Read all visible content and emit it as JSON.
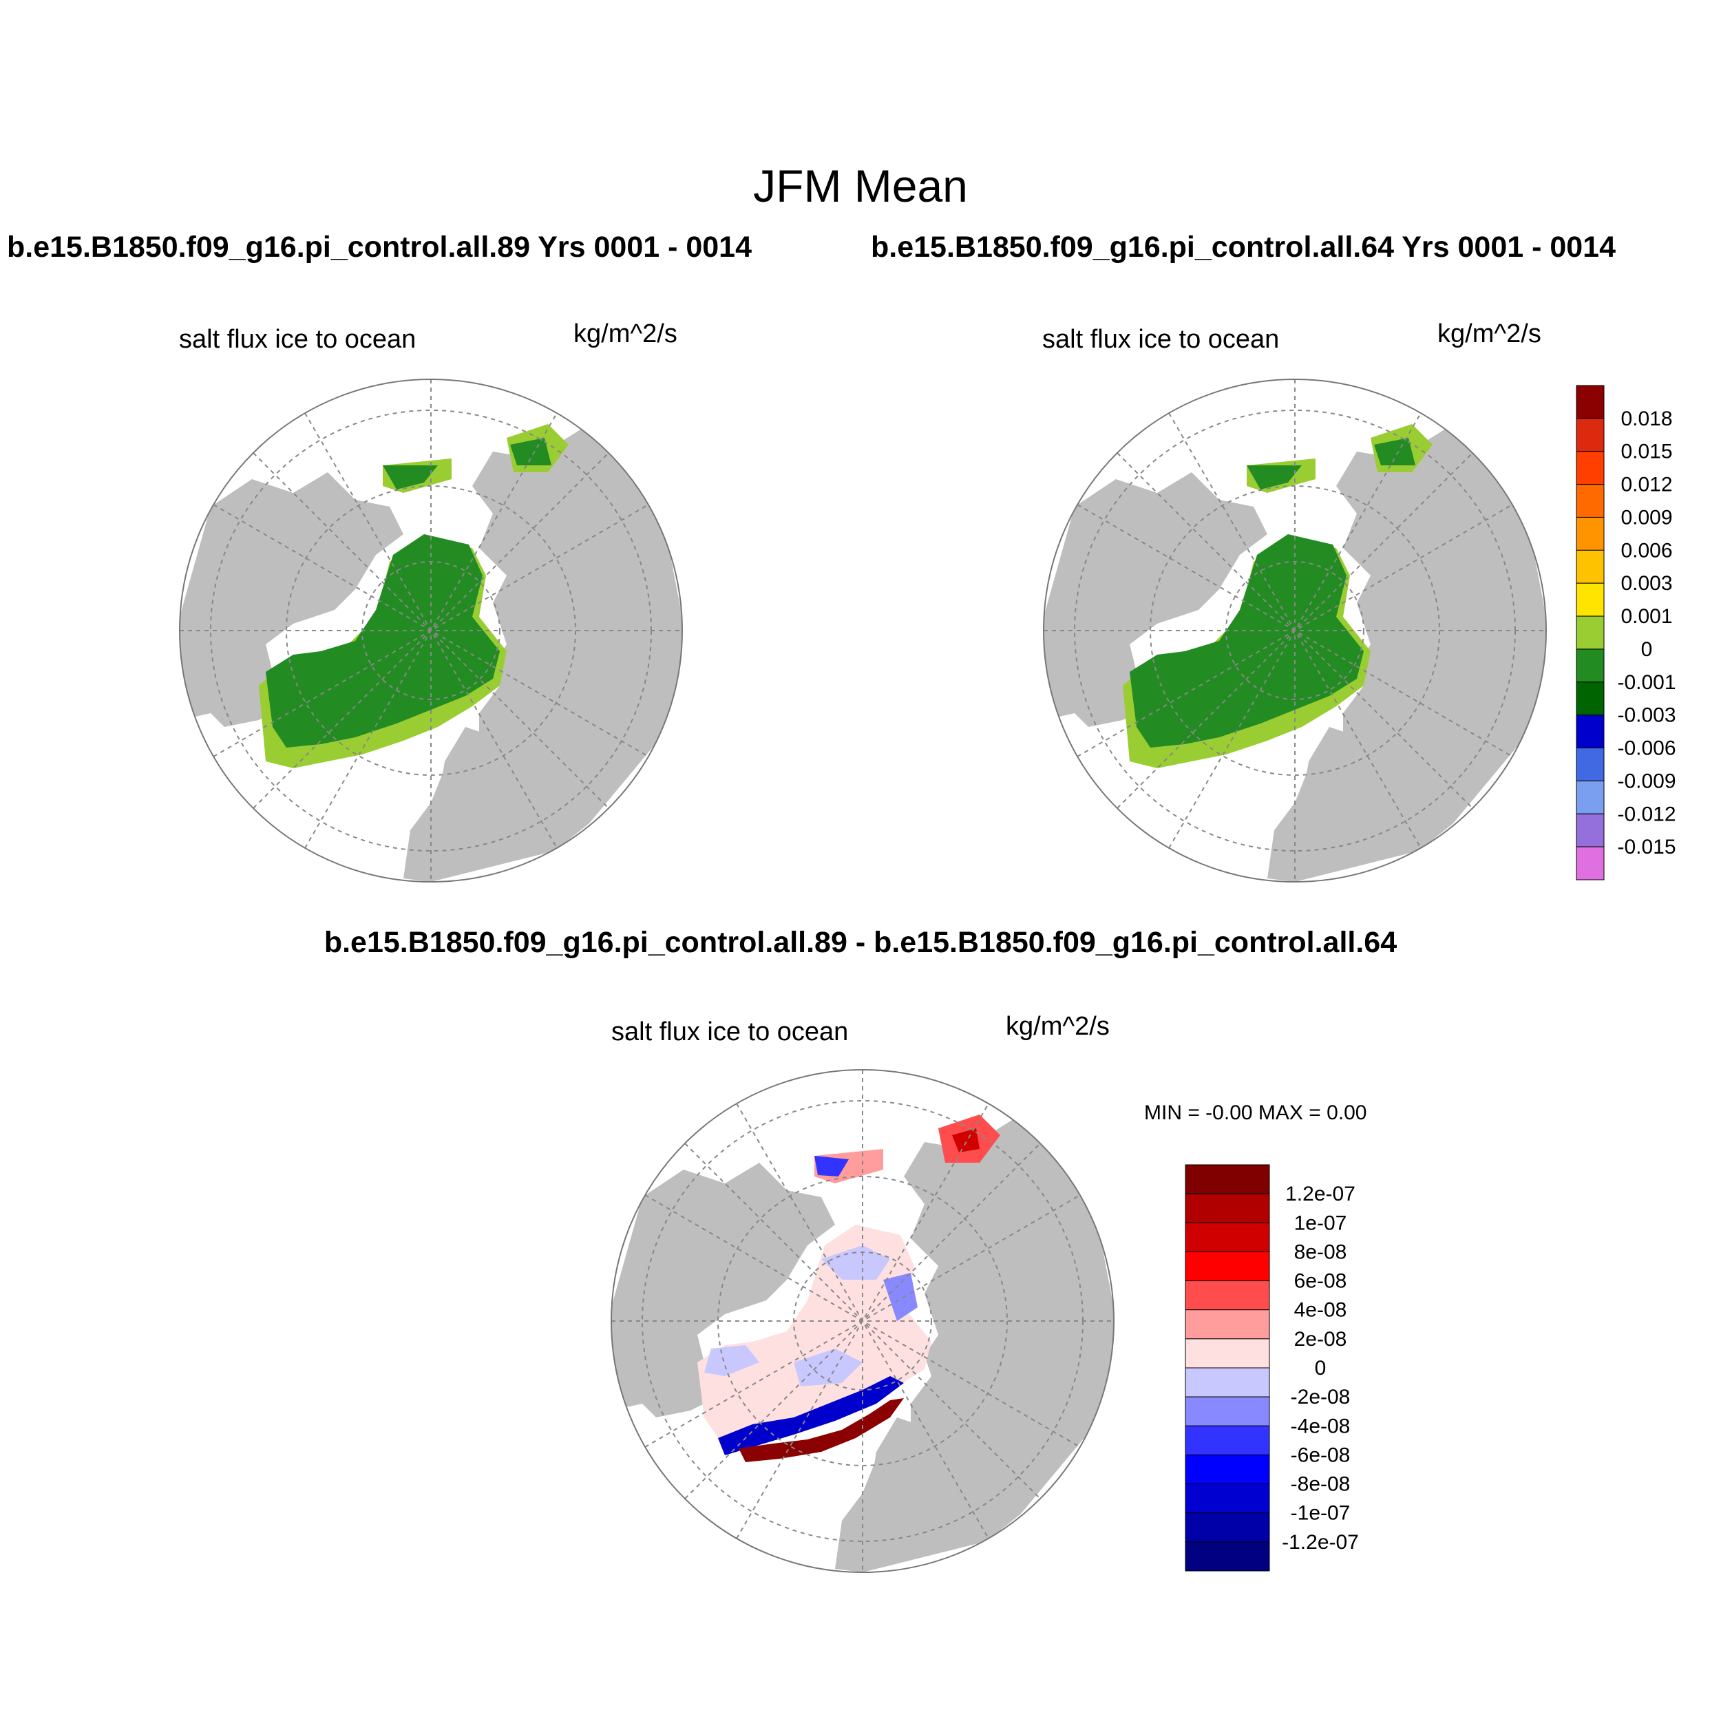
{
  "figure": {
    "title": "JFM Mean",
    "left_run_title": "b.e15.B1850.f09_g16.pi_control.all.89  Yrs 0001 - 0014",
    "right_run_title": "b.e15.B1850.f09_g16.pi_control.all.64  Yrs 0001 - 0014",
    "diff_title": "b.e15.B1850.f09_g16.pi_control.all.89 - b.e15.B1850.f09_g16.pi_control.all.64"
  },
  "panels": {
    "left": {
      "variable": "salt flux ice to ocean",
      "units": "kg/m^2/s"
    },
    "right": {
      "variable": "salt flux ice to ocean",
      "units": "kg/m^2/s"
    },
    "diff": {
      "variable": "salt flux ice to ocean",
      "units": "kg/m^2/s",
      "minmax": "MIN =  -0.00 MAX =   0.00"
    }
  },
  "colors": {
    "land": "#bebebe",
    "ocean": "#ffffff",
    "ice_main": "#228b22",
    "ice_edge": "#9acd32"
  },
  "colorbar_main": {
    "colors": [
      "#8b0000",
      "#dc2a0f",
      "#ff3f00",
      "#ff6a00",
      "#ff9400",
      "#ffc200",
      "#ffe400",
      "#9acd32",
      "#228b22",
      "#006400",
      "#0000cd",
      "#4169e1",
      "#7b9ff0",
      "#9370db",
      "#e070e0"
    ],
    "labels": [
      "0.018",
      "0.015",
      "0.012",
      "0.009",
      "0.006",
      "0.003",
      "0.001",
      "0",
      "-0.001",
      "-0.003",
      "-0.006",
      "-0.009",
      "-0.012",
      "-0.015"
    ]
  },
  "colorbar_diff": {
    "colors": [
      "#800000",
      "#b00000",
      "#d00000",
      "#ff0000",
      "#ff4c4c",
      "#ff9c9c",
      "#ffe0e0",
      "#c8c8ff",
      "#8888ff",
      "#3333ff",
      "#0000ff",
      "#0000d0",
      "#0000a8",
      "#000080"
    ],
    "labels": [
      "1.2e-07",
      "1e-07",
      "8e-08",
      "6e-08",
      "4e-08",
      "2e-08",
      "0",
      "-2e-08",
      "-4e-08",
      "-6e-08",
      "-8e-08",
      "-1e-07",
      "-1.2e-07"
    ]
  }
}
